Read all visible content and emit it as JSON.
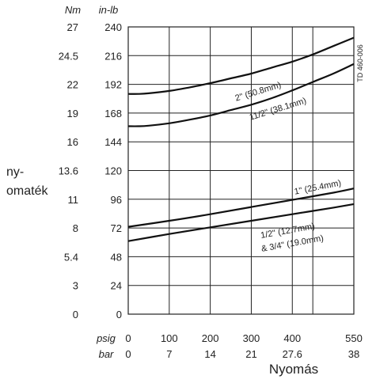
{
  "chart_data": {
    "type": "line",
    "title": "",
    "doc_code": "TD 460-006",
    "ylabel_lines": [
      "ny-",
      "omaték"
    ],
    "xlabel": "Nyomás",
    "y_units": [
      "Nm",
      "in-lb"
    ],
    "x_units": [
      "psig",
      "bar"
    ],
    "ylim": [
      0,
      240
    ],
    "xlim": [
      0,
      550
    ],
    "y_ticks_inlb": [
      0,
      24,
      48,
      72,
      96,
      120,
      144,
      168,
      192,
      216,
      240
    ],
    "y_ticks_inlb_labels": [
      "0",
      "24",
      "48",
      "72",
      "96",
      "120",
      "144",
      "168",
      "192",
      "216",
      "240"
    ],
    "y_ticks_nm_labels": [
      "0",
      "3",
      "5.4",
      "8",
      "11",
      "13.6",
      "16",
      "19",
      "22",
      "24.5",
      "27"
    ],
    "x_ticks_psig": [
      0,
      100,
      200,
      300,
      400,
      550
    ],
    "x_ticks_psig_labels": [
      "0",
      "100",
      "200",
      "300",
      "400",
      "550"
    ],
    "x_ticks_bar_labels": [
      "0",
      "7",
      "14",
      "21",
      "27.6",
      "38"
    ],
    "x_grid_psig": [
      0,
      100,
      200,
      300,
      400,
      450,
      550
    ],
    "grid": true,
    "series": [
      {
        "name": "2\" (50.8mm)",
        "x": [
          0,
          25,
          50,
          100,
          150,
          200,
          250,
          300,
          350,
          400,
          450,
          500,
          550
        ],
        "y": [
          184,
          184,
          184.5,
          186.5,
          189.5,
          193,
          197,
          201,
          206,
          211,
          217,
          224,
          231
        ]
      },
      {
        "name": "11/2\" (38.1mm)",
        "x": [
          0,
          25,
          50,
          100,
          150,
          200,
          250,
          300,
          350,
          400,
          450,
          500,
          550
        ],
        "y": [
          157,
          157,
          157.5,
          159.5,
          162.5,
          166,
          170.5,
          175,
          180.5,
          187,
          194,
          201,
          209
        ]
      },
      {
        "name": "1\" (25.4mm)",
        "x": [
          0,
          100,
          200,
          300,
          400,
          500,
          550
        ],
        "y": [
          73,
          78,
          83.5,
          89.5,
          95.5,
          101.5,
          105
        ]
      },
      {
        "name": "1/2\" (12.7mm) & 3/4\" (19.0mm)",
        "x": [
          0,
          100,
          200,
          300,
          400,
          500,
          550
        ],
        "y": [
          61,
          67,
          72.5,
          78,
          83.5,
          89,
          92
        ]
      }
    ],
    "annotations": [
      {
        "text": "2\" (50.8mm)",
        "series": 0
      },
      {
        "text": "11/2\" (38.1mm)",
        "series": 1
      },
      {
        "text": "1\" (25.4mm)",
        "series": 2
      },
      {
        "text": "1/2\" (12.7mm)",
        "series": 3
      },
      {
        "text": "& 3/4\" (19.0mm)",
        "series": 3
      }
    ]
  }
}
